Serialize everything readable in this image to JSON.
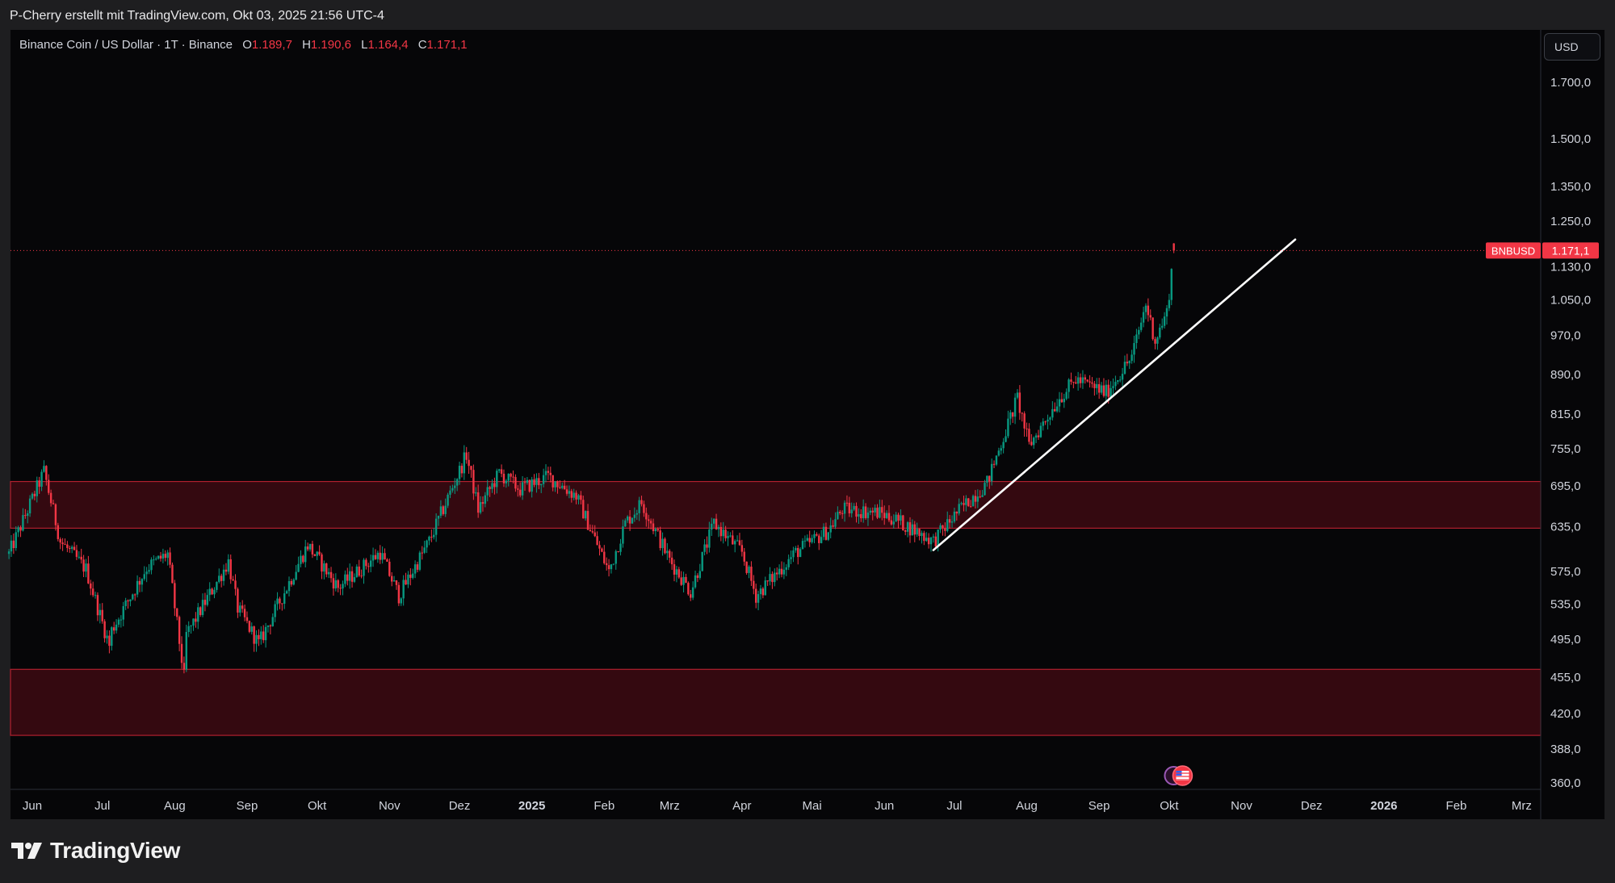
{
  "header": {
    "attribution": "P-Cherry erstellt mit TradingView.com, Okt 03, 2025 21:56 UTC-4"
  },
  "legend": {
    "symbol": "Binance Coin / US Dollar · 1T · Binance",
    "open_label": "O",
    "open": "1.189,7",
    "high_label": "H",
    "high": "1.190,6",
    "low_label": "L",
    "low": "1.164,4",
    "close_label": "C",
    "close": "1.171,1"
  },
  "currency_button": "USD",
  "footer": {
    "brand": "TradingView",
    "logo_icon": "tradingview-logo-icon"
  },
  "events_icon": "us-flag-economic-events-icon",
  "colors": {
    "up": "#089981",
    "down": "#f23645",
    "zone_fill": "#3a0a12",
    "zone_border": "#b0202e",
    "trendline": "#ffffff",
    "price_tag": "#f23645"
  },
  "chart_data": {
    "type": "candlestick",
    "title": "Binance Coin / US Dollar · 1T · Binance",
    "scale": "log",
    "ylim": [
      350,
      1850
    ],
    "y_ticks": [
      {
        "value": 1700,
        "label": "1.700,0"
      },
      {
        "value": 1500,
        "label": "1.500,0"
      },
      {
        "value": 1350,
        "label": "1.350,0"
      },
      {
        "value": 1250,
        "label": "1.250,0"
      },
      {
        "value": 1130,
        "label": "1.130,0"
      },
      {
        "value": 1050,
        "label": "1.050,0"
      },
      {
        "value": 970,
        "label": "970,0"
      },
      {
        "value": 890,
        "label": "890,0"
      },
      {
        "value": 815,
        "label": "815,0"
      },
      {
        "value": 755,
        "label": "755,0"
      },
      {
        "value": 695,
        "label": "695,0"
      },
      {
        "value": 635,
        "label": "635,0"
      },
      {
        "value": 575,
        "label": "575,0"
      },
      {
        "value": 535,
        "label": "535,0"
      },
      {
        "value": 495,
        "label": "495,0"
      },
      {
        "value": 455,
        "label": "455,0"
      },
      {
        "value": 420,
        "label": "420,0"
      },
      {
        "value": 388,
        "label": "388,0"
      },
      {
        "value": 360,
        "label": "360,0"
      }
    ],
    "x_ticks": [
      {
        "date": "2024-06-01",
        "label": "Jun",
        "bold": false
      },
      {
        "date": "2024-07-01",
        "label": "Jul",
        "bold": false
      },
      {
        "date": "2024-08-01",
        "label": "Aug",
        "bold": false
      },
      {
        "date": "2024-09-01",
        "label": "Sep",
        "bold": false
      },
      {
        "date": "2024-10-01",
        "label": "Okt",
        "bold": false
      },
      {
        "date": "2024-11-01",
        "label": "Nov",
        "bold": false
      },
      {
        "date": "2024-12-01",
        "label": "Dez",
        "bold": false
      },
      {
        "date": "2025-01-01",
        "label": "2025",
        "bold": true
      },
      {
        "date": "2025-02-01",
        "label": "Feb",
        "bold": false
      },
      {
        "date": "2025-03-01",
        "label": "Mrz",
        "bold": false
      },
      {
        "date": "2025-04-01",
        "label": "Apr",
        "bold": false
      },
      {
        "date": "2025-05-01",
        "label": "Mai",
        "bold": false
      },
      {
        "date": "2025-06-01",
        "label": "Jun",
        "bold": false
      },
      {
        "date": "2025-07-01",
        "label": "Jul",
        "bold": false
      },
      {
        "date": "2025-08-01",
        "label": "Aug",
        "bold": false
      },
      {
        "date": "2025-09-01",
        "label": "Sep",
        "bold": false
      },
      {
        "date": "2025-10-01",
        "label": "Okt",
        "bold": false
      },
      {
        "date": "2025-11-01",
        "label": "Nov",
        "bold": false
      },
      {
        "date": "2025-12-01",
        "label": "Dez",
        "bold": false
      },
      {
        "date": "2026-01-01",
        "label": "2026",
        "bold": true
      },
      {
        "date": "2026-02-01",
        "label": "Feb",
        "bold": false
      },
      {
        "date": "2026-03-01",
        "label": "Mrz",
        "bold": false
      }
    ],
    "price_path": [
      {
        "date": "2024-05-22",
        "close": 598
      },
      {
        "date": "2024-06-06",
        "close": 718
      },
      {
        "date": "2024-06-13",
        "close": 615
      },
      {
        "date": "2024-06-24",
        "close": 578
      },
      {
        "date": "2024-07-04",
        "close": 488
      },
      {
        "date": "2024-07-05",
        "close": 505
      },
      {
        "date": "2024-07-20",
        "close": 580
      },
      {
        "date": "2024-07-29",
        "close": 598
      },
      {
        "date": "2024-08-05",
        "close": 455
      },
      {
        "date": "2024-08-06",
        "close": 500
      },
      {
        "date": "2024-08-24",
        "close": 588
      },
      {
        "date": "2024-08-28",
        "close": 530
      },
      {
        "date": "2024-09-06",
        "close": 490
      },
      {
        "date": "2024-09-27",
        "close": 610
      },
      {
        "date": "2024-10-10",
        "close": 555
      },
      {
        "date": "2024-10-28",
        "close": 600
      },
      {
        "date": "2024-11-05",
        "close": 545
      },
      {
        "date": "2024-11-18",
        "close": 615
      },
      {
        "date": "2024-12-04",
        "close": 745
      },
      {
        "date": "2024-12-09",
        "close": 660
      },
      {
        "date": "2024-12-18",
        "close": 715
      },
      {
        "date": "2024-12-27",
        "close": 690
      },
      {
        "date": "2025-01-08",
        "close": 710
      },
      {
        "date": "2025-01-20",
        "close": 680
      },
      {
        "date": "2025-02-03",
        "close": 575
      },
      {
        "date": "2025-02-10",
        "close": 640
      },
      {
        "date": "2025-02-17",
        "close": 670
      },
      {
        "date": "2025-03-01",
        "close": 590
      },
      {
        "date": "2025-03-10",
        "close": 550
      },
      {
        "date": "2025-03-20",
        "close": 640
      },
      {
        "date": "2025-04-01",
        "close": 600
      },
      {
        "date": "2025-04-07",
        "close": 545
      },
      {
        "date": "2025-04-24",
        "close": 600
      },
      {
        "date": "2025-05-08",
        "close": 630
      },
      {
        "date": "2025-05-14",
        "close": 660
      },
      {
        "date": "2025-05-30",
        "close": 655
      },
      {
        "date": "2025-06-06",
        "close": 645
      },
      {
        "date": "2025-06-22",
        "close": 615
      },
      {
        "date": "2025-07-02",
        "close": 655
      },
      {
        "date": "2025-07-15",
        "close": 700
      },
      {
        "date": "2025-07-28",
        "close": 845
      },
      {
        "date": "2025-08-02",
        "close": 760
      },
      {
        "date": "2025-08-15",
        "close": 845
      },
      {
        "date": "2025-08-22",
        "close": 880
      },
      {
        "date": "2025-09-04",
        "close": 855
      },
      {
        "date": "2025-09-15",
        "close": 925
      },
      {
        "date": "2025-09-21",
        "close": 1040
      },
      {
        "date": "2025-09-25",
        "close": 960
      },
      {
        "date": "2025-09-30",
        "close": 1020
      },
      {
        "date": "2025-10-03",
        "close": 1171.1
      }
    ],
    "last_price": {
      "value": 1171.1,
      "label": "1.171,1",
      "symbol": "BNBUSD"
    },
    "zones": [
      {
        "low": 633,
        "high": 702
      },
      {
        "low": 400,
        "high": 463
      }
    ],
    "trendline": {
      "start": {
        "date": "2025-06-22",
        "value": 603
      },
      "end": {
        "date": "2025-11-24",
        "value": 1200
      }
    }
  }
}
